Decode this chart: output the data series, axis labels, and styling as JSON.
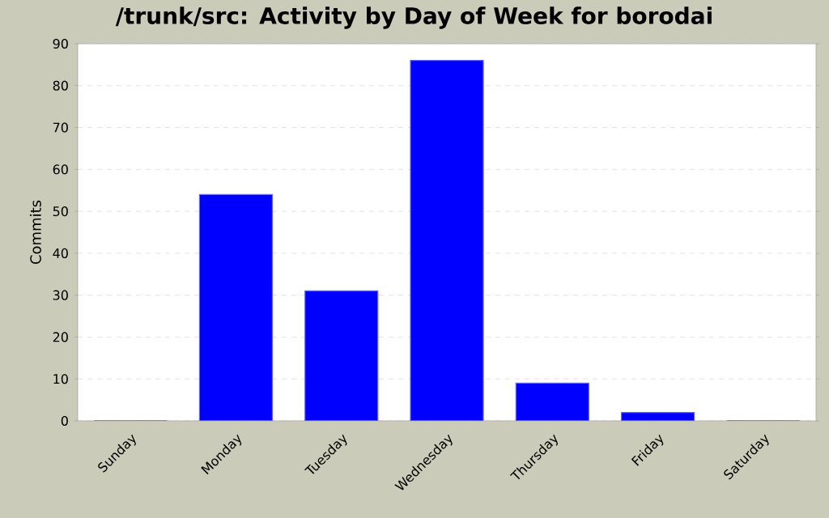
{
  "chart_data": {
    "type": "bar",
    "title": "/trunk/src: Activity by Day of Week for borodai",
    "ylabel": "Commits",
    "categories": [
      "Sunday",
      "Monday",
      "Tuesday",
      "Wednesday",
      "Thursday",
      "Friday",
      "Saturday"
    ],
    "values": [
      0,
      54,
      31,
      86,
      9,
      2,
      0
    ],
    "color": "#0000ff",
    "ylim": [
      0,
      90
    ],
    "yticks": [
      0,
      10,
      20,
      30,
      40,
      50,
      60,
      70,
      80,
      90
    ],
    "grid": "y"
  }
}
